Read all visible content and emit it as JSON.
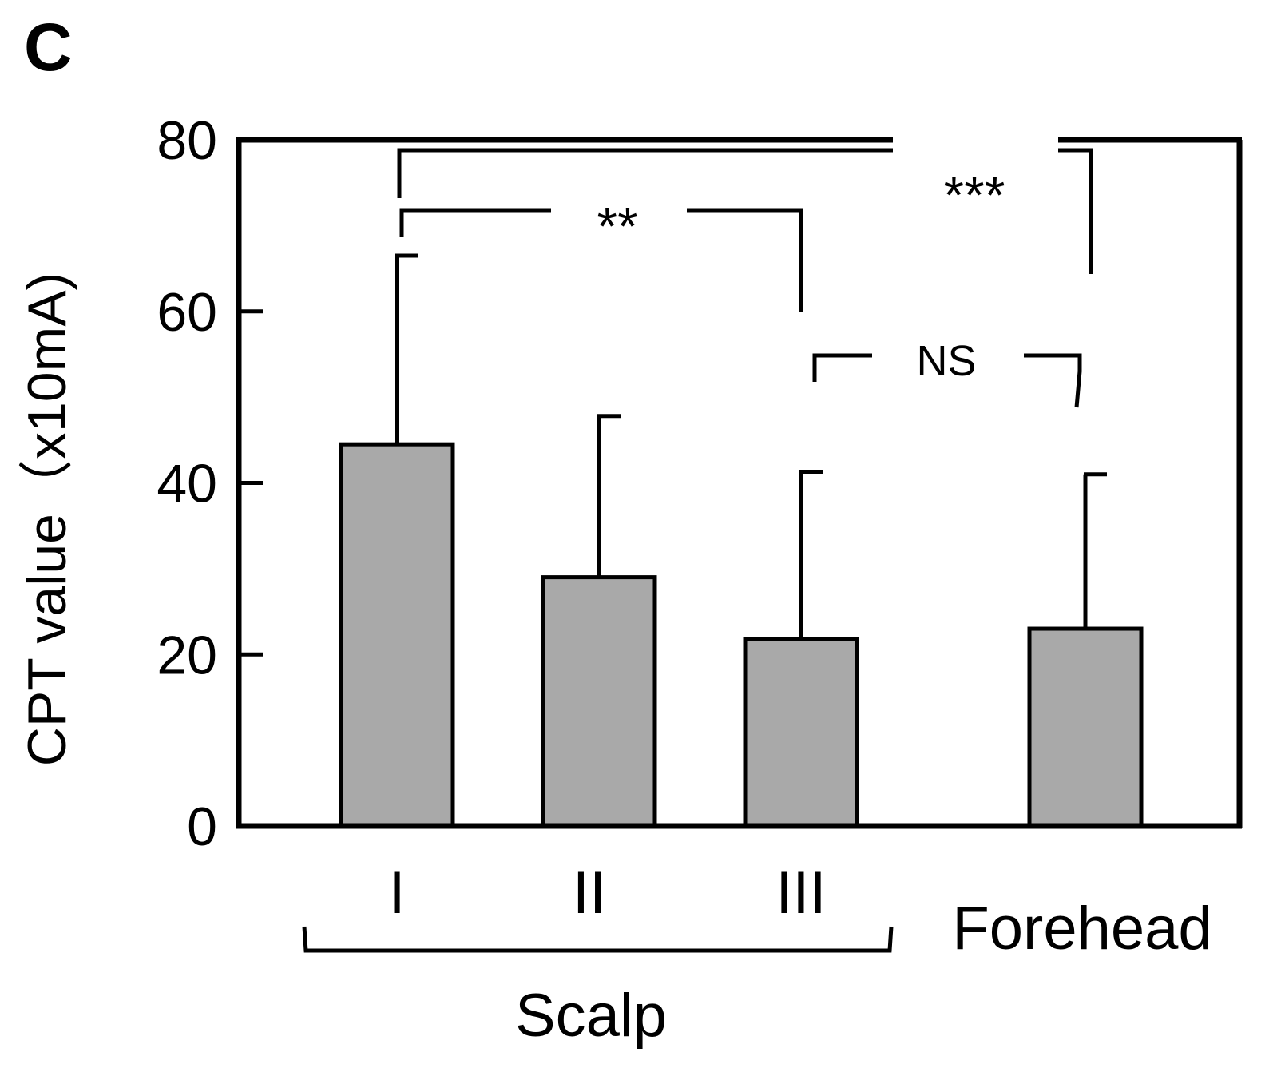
{
  "panel_label": "C",
  "chart_data": {
    "type": "bar",
    "title": "",
    "ylabel": "CPT value（x10mA)",
    "xlabel": "",
    "ylim": [
      0,
      80
    ],
    "yticks": [
      0,
      20,
      40,
      60,
      80
    ],
    "categories": [
      "I",
      "II",
      "III",
      "Forehead"
    ],
    "values": [
      44.5,
      29,
      21.8,
      23
    ],
    "errors": [
      22,
      18.8,
      19.5,
      18
    ],
    "group_label": "Scalp",
    "grid": false,
    "significance": [
      {
        "label": "**",
        "from": "I",
        "to": "III"
      },
      {
        "label": "***",
        "from": "I",
        "to": "Forehead"
      },
      {
        "label": "NS",
        "from": "III",
        "to": "Forehead"
      }
    ]
  },
  "colors": {
    "bar_fill": "#a9a9a9",
    "stroke": "#000000"
  }
}
